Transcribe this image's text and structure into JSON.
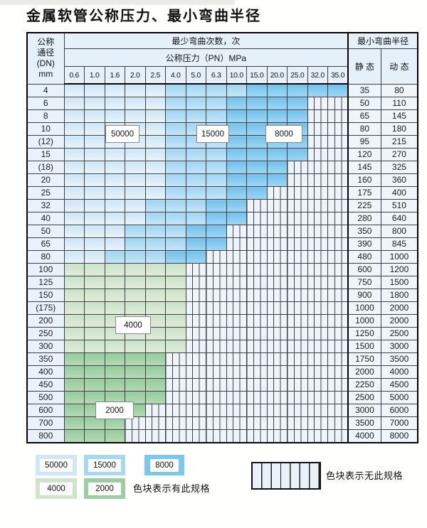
{
  "page": {
    "title": "金属软管公称压力、最小弯曲半径"
  },
  "colors": {
    "blue_50000": "#cfe7f7",
    "blue_15000": "#a5d8f2",
    "blue_8000": "#79c6ee",
    "green_4000": "#d0e4cc",
    "green_2000": "#9bcfa1",
    "no_spec_bg": "#edf4fb",
    "header_bg": "#e6f0f9",
    "grid_line": "#3f3f3f"
  },
  "table": {
    "header": {
      "dn_lines": [
        "公称",
        "通径",
        "(DN)",
        "mm"
      ],
      "cycles_title": "最少弯曲次数，次",
      "pressure_title": "公称压力（PN）MPa",
      "radius_title": "最小弯曲半径",
      "static_label": "静 态",
      "dynamic_label": "动 态",
      "pressures": [
        "0.6",
        "1.0",
        "1.6",
        "2.0",
        "2.5",
        "4.0",
        "5.0",
        "6.3",
        "10.0",
        "15.0",
        "20.0",
        "25.0",
        "32.0",
        "35.0"
      ]
    },
    "cell_legend": {
      "b1": "50000次",
      "b2": "15000次",
      "b3": "8000次",
      "g1": "4000次",
      "g2": "2000次",
      "x": "无此规格"
    },
    "rows": [
      {
        "dn": "4",
        "cells": [
          "b1",
          "b1",
          "b1",
          "b1",
          "b1",
          "b2",
          "b2",
          "b2",
          "b2",
          "b3",
          "b3",
          "b3",
          "b3",
          "b3"
        ],
        "static": "35",
        "dynamic": "80"
      },
      {
        "dn": "6",
        "cells": [
          "b1",
          "b1",
          "b1",
          "b1",
          "b1",
          "b2",
          "b2",
          "b2",
          "b3",
          "b3",
          "b3",
          "b3",
          "x",
          "x"
        ],
        "static": "50",
        "dynamic": "110"
      },
      {
        "dn": "8",
        "cells": [
          "b1",
          "b1",
          "b1",
          "b1",
          "b1",
          "b2",
          "b2",
          "b2",
          "b3",
          "b3",
          "b3",
          "b3",
          "x",
          "x"
        ],
        "static": "65",
        "dynamic": "145"
      },
      {
        "dn": "10",
        "cells": [
          "b1",
          "b1",
          "b1",
          "b1",
          "b1",
          "b2",
          "b2",
          "b2",
          "b3",
          "b3",
          "b3",
          "b3",
          "x",
          "x"
        ],
        "static": "80",
        "dynamic": "180"
      },
      {
        "dn": "(12)",
        "cells": [
          "b1",
          "b1",
          "b1",
          "b1",
          "b1",
          "b2",
          "b2",
          "b2",
          "b3",
          "b3",
          "b3",
          "b3",
          "x",
          "x"
        ],
        "static": "95",
        "dynamic": "215"
      },
      {
        "dn": "15",
        "cells": [
          "b1",
          "b1",
          "b1",
          "b1",
          "b1",
          "b2",
          "b2",
          "b2",
          "b3",
          "b3",
          "b3",
          "b3",
          "x",
          "x"
        ],
        "static": "120",
        "dynamic": "270"
      },
      {
        "dn": "(18)",
        "cells": [
          "b1",
          "b1",
          "b1",
          "b1",
          "b1",
          "b2",
          "b2",
          "b2",
          "b3",
          "b3",
          "b3",
          "x",
          "x",
          "x"
        ],
        "static": "145",
        "dynamic": "325"
      },
      {
        "dn": "20",
        "cells": [
          "b1",
          "b1",
          "b1",
          "b1",
          "b1",
          "b2",
          "b2",
          "b2",
          "b3",
          "b3",
          "b3",
          "x",
          "x",
          "x"
        ],
        "static": "160",
        "dynamic": "360"
      },
      {
        "dn": "25",
        "cells": [
          "b1",
          "b1",
          "b1",
          "b1",
          "b1",
          "b2",
          "b2",
          "b2",
          "b3",
          "b3",
          "x",
          "x",
          "x",
          "x"
        ],
        "static": "175",
        "dynamic": "400"
      },
      {
        "dn": "32",
        "cells": [
          "b1",
          "b1",
          "b1",
          "b1",
          "b2",
          "b2",
          "b2",
          "b3",
          "b3",
          "x",
          "x",
          "x",
          "x",
          "x"
        ],
        "static": "225",
        "dynamic": "510"
      },
      {
        "dn": "40",
        "cells": [
          "b1",
          "b1",
          "b1",
          "b1",
          "b2",
          "b2",
          "b2",
          "b3",
          "b3",
          "x",
          "x",
          "x",
          "x",
          "x"
        ],
        "static": "280",
        "dynamic": "640"
      },
      {
        "dn": "50",
        "cells": [
          "b1",
          "b1",
          "b1",
          "b2",
          "b2",
          "b2",
          "b3",
          "b3",
          "x",
          "x",
          "x",
          "x",
          "x",
          "x"
        ],
        "static": "350",
        "dynamic": "800"
      },
      {
        "dn": "65",
        "cells": [
          "b1",
          "b1",
          "b1",
          "b2",
          "b2",
          "b2",
          "b3",
          "b3",
          "x",
          "x",
          "x",
          "x",
          "x",
          "x"
        ],
        "static": "390",
        "dynamic": "845"
      },
      {
        "dn": "80",
        "cells": [
          "b1",
          "b1",
          "b2",
          "b2",
          "b2",
          "b3",
          "b3",
          "x",
          "x",
          "x",
          "x",
          "x",
          "x",
          "x"
        ],
        "static": "480",
        "dynamic": "1000"
      },
      {
        "dn": "100",
        "cells": [
          "g1",
          "g1",
          "g1",
          "g1",
          "g1",
          "g1",
          "x",
          "x",
          "x",
          "x",
          "x",
          "x",
          "x",
          "x"
        ],
        "static": "600",
        "dynamic": "1200"
      },
      {
        "dn": "125",
        "cells": [
          "g1",
          "g1",
          "g1",
          "g1",
          "g1",
          "g1",
          "x",
          "x",
          "x",
          "x",
          "x",
          "x",
          "x",
          "x"
        ],
        "static": "750",
        "dynamic": "1500"
      },
      {
        "dn": "150",
        "cells": [
          "g1",
          "g1",
          "g1",
          "g1",
          "g1",
          "g1",
          "x",
          "x",
          "x",
          "x",
          "x",
          "x",
          "x",
          "x"
        ],
        "static": "900",
        "dynamic": "1800"
      },
      {
        "dn": "(175)",
        "cells": [
          "g1",
          "g1",
          "g1",
          "g1",
          "g1",
          "g1",
          "x",
          "x",
          "x",
          "x",
          "x",
          "x",
          "x",
          "x"
        ],
        "static": "1000",
        "dynamic": "2000"
      },
      {
        "dn": "200",
        "cells": [
          "g1",
          "g1",
          "g1",
          "g1",
          "g1",
          "g1",
          "x",
          "x",
          "x",
          "x",
          "x",
          "x",
          "x",
          "x"
        ],
        "static": "1000",
        "dynamic": "2000"
      },
      {
        "dn": "250",
        "cells": [
          "g1",
          "g1",
          "g1",
          "g1",
          "g1",
          "g1",
          "x",
          "x",
          "x",
          "x",
          "x",
          "x",
          "x",
          "x"
        ],
        "static": "1250",
        "dynamic": "2500"
      },
      {
        "dn": "300",
        "cells": [
          "g1",
          "g1",
          "g1",
          "g1",
          "g1",
          "g1",
          "x",
          "x",
          "x",
          "x",
          "x",
          "x",
          "x",
          "x"
        ],
        "static": "1500",
        "dynamic": "3000"
      },
      {
        "dn": "350",
        "cells": [
          "g2",
          "g2",
          "g2",
          "g2",
          "g2",
          "x",
          "x",
          "x",
          "x",
          "x",
          "x",
          "x",
          "x",
          "x"
        ],
        "static": "1750",
        "dynamic": "3500"
      },
      {
        "dn": "400",
        "cells": [
          "g2",
          "g2",
          "g2",
          "g2",
          "g2",
          "x",
          "x",
          "x",
          "x",
          "x",
          "x",
          "x",
          "x",
          "x"
        ],
        "static": "2000",
        "dynamic": "4000"
      },
      {
        "dn": "450",
        "cells": [
          "g2",
          "g2",
          "g2",
          "g2",
          "g2",
          "x",
          "x",
          "x",
          "x",
          "x",
          "x",
          "x",
          "x",
          "x"
        ],
        "static": "2250",
        "dynamic": "4500"
      },
      {
        "dn": "500",
        "cells": [
          "g2",
          "g2",
          "g2",
          "g2",
          "g2",
          "x",
          "x",
          "x",
          "x",
          "x",
          "x",
          "x",
          "x",
          "x"
        ],
        "static": "2500",
        "dynamic": "5000"
      },
      {
        "dn": "600",
        "cells": [
          "g2",
          "g2",
          "g2",
          "g2",
          "x",
          "x",
          "x",
          "x",
          "x",
          "x",
          "x",
          "x",
          "x",
          "x"
        ],
        "static": "3000",
        "dynamic": "6000"
      },
      {
        "dn": "700",
        "cells": [
          "g2",
          "g2",
          "g2",
          "x",
          "x",
          "x",
          "x",
          "x",
          "x",
          "x",
          "x",
          "x",
          "x",
          "x"
        ],
        "static": "3500",
        "dynamic": "7000"
      },
      {
        "dn": "800",
        "cells": [
          "g2",
          "g2",
          "g2",
          "x",
          "x",
          "x",
          "x",
          "x",
          "x",
          "x",
          "x",
          "x",
          "x",
          "x"
        ],
        "static": "4000",
        "dynamic": "8000"
      }
    ],
    "overlays": [
      {
        "id": "50000",
        "label": "50000"
      },
      {
        "id": "15000",
        "label": "15000"
      },
      {
        "id": "8000",
        "label": "8000"
      },
      {
        "id": "4000",
        "label": "4000"
      },
      {
        "id": "2000",
        "label": "2000"
      }
    ]
  },
  "legend": {
    "swatches": [
      {
        "id": "50000",
        "label": "50000",
        "type": "b1"
      },
      {
        "id": "15000",
        "label": "15000",
        "type": "b2"
      },
      {
        "id": "8000",
        "label": "8000",
        "type": "b3"
      },
      {
        "id": "4000",
        "label": "4000",
        "type": "g1"
      },
      {
        "id": "2000",
        "label": "2000",
        "type": "g2"
      }
    ],
    "has_spec_note": "色块表示有此规格",
    "no_spec_note": "色块表示无此规格"
  }
}
